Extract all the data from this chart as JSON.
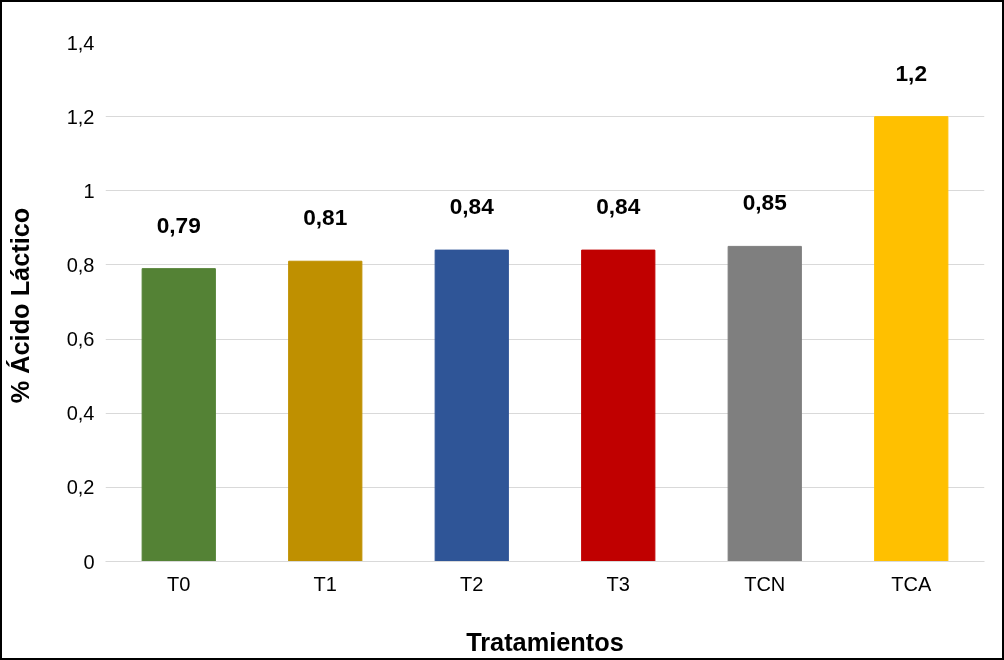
{
  "chart_data": {
    "type": "bar",
    "xlabel": "Tratamientos",
    "ylabel": "%  Ácido Láctico",
    "categories": [
      "T0",
      "T1",
      "T2",
      "T3",
      "TCN",
      "TCA"
    ],
    "values": [
      0.79,
      0.81,
      0.84,
      0.84,
      0.85,
      1.2
    ],
    "colors": [
      "#548235",
      "#bf9000",
      "#2f5597",
      "#c00000",
      "#7f7f7f",
      "#ffc000"
    ],
    "value_labels": [
      "0,79",
      "0,81",
      "0,84",
      "0,84",
      "0,85",
      "1,2"
    ],
    "ylim": [
      0,
      1.4
    ],
    "yticks": [
      0,
      {
        "value": 0.2,
        "label": "0,2"
      },
      {
        "value": 0.4,
        "label": "0,4"
      },
      {
        "value": 0.6,
        "label": "0,6"
      },
      {
        "value": 0.8,
        "label": "0,8"
      },
      1,
      {
        "value": 1.2,
        "label": "1,2"
      },
      {
        "value": 1.4,
        "label": "1,4"
      }
    ],
    "grid": "y"
  }
}
